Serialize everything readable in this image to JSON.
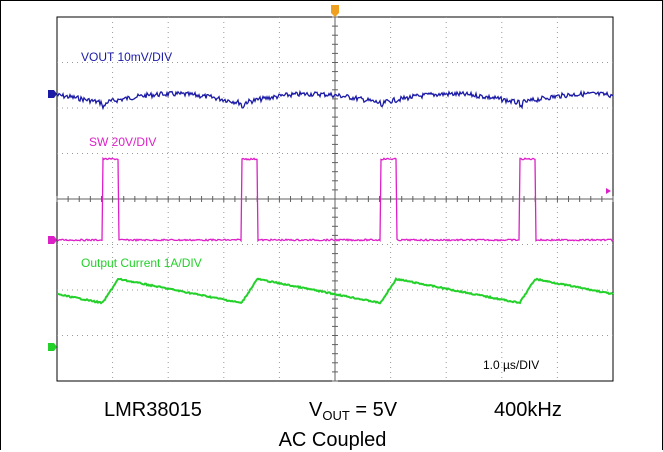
{
  "chart_data": {
    "type": "line",
    "timebase_label": "1.0 µs/DIV",
    "x_range_us": [
      -3.8,
      6.2
    ],
    "x_divisions": 10,
    "y_divisions": 8,
    "grid": "dotted",
    "series": [
      {
        "name": "VOUT  10mV/DIV",
        "color": "#1a1aa6",
        "scale": "10mV/DIV",
        "coupling": "AC",
        "period_us": 2.5,
        "shape": "ripple",
        "ripple_mV_pp": 6
      },
      {
        "name": "SW  20V/DIV",
        "color": "#dd1fc8",
        "scale": "20V/DIV",
        "period_us": 2.5,
        "shape": "pulse",
        "on_time_us": 0.28,
        "high_V": 16,
        "low_V": 0
      },
      {
        "name": "Output Current  1A/DIV",
        "color": "#23d12a",
        "scale": "1A/DIV",
        "period_us": 2.5,
        "shape": "sawtooth",
        "ripple_A_pp": 0.6
      }
    ]
  },
  "captions": {
    "device": "LMR38015",
    "vout_label": "V",
    "vout_sub": "OUT",
    "vout_value": " = 5V",
    "frequency": "400kHz",
    "coupling": "AC Coupled"
  },
  "colors": {
    "trigger_marker": "#f0a020",
    "grid": "#9a9a9a",
    "center_axis": "#606060"
  }
}
